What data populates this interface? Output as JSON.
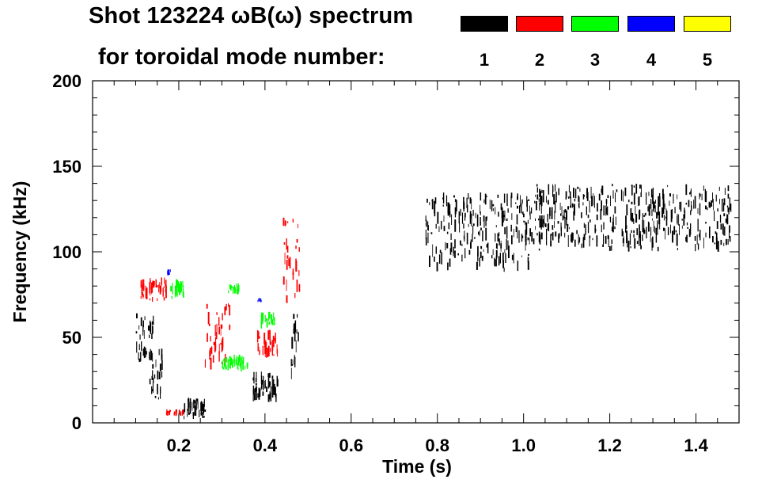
{
  "title_line1": "Shot 123224 ωB(ω) spectrum",
  "title_line2": "for toroidal mode number:",
  "legend": [
    {
      "label": "1",
      "color": "#000000"
    },
    {
      "label": "2",
      "color": "#ff0000"
    },
    {
      "label": "3",
      "color": "#00ff00"
    },
    {
      "label": "4",
      "color": "#0000ff"
    },
    {
      "label": "5",
      "color": "#ffff00"
    }
  ],
  "chart_data": {
    "type": "heatmap",
    "title": "Shot 123224 ωB(ω) spectrum",
    "xlabel": "Time (s)",
    "ylabel": "Frequency (kHz)",
    "xlim": [
      0.0,
      1.5
    ],
    "ylim": [
      0,
      200
    ],
    "xticks": [
      0.2,
      0.4,
      0.6,
      0.8,
      1.0,
      1.2,
      1.4
    ],
    "yticks": [
      0,
      50,
      100,
      150,
      200
    ],
    "grid": false,
    "legend_placement": "top",
    "series": [
      {
        "name": "1",
        "color": "#000000",
        "regions": [
          {
            "t": [
              0.1,
              0.14
            ],
            "f": [
              35,
              65
            ]
          },
          {
            "t": [
              0.13,
              0.16
            ],
            "f": [
              10,
              45
            ]
          },
          {
            "t": [
              0.21,
              0.26
            ],
            "f": [
              2,
              15
            ]
          },
          {
            "t": [
              0.37,
              0.43
            ],
            "f": [
              12,
              30
            ]
          },
          {
            "t": [
              0.46,
              0.48
            ],
            "f": [
              25,
              65
            ]
          },
          {
            "t": [
              0.77,
              1.02
            ],
            "f": [
              88,
              135
            ]
          },
          {
            "t": [
              1.02,
              1.48
            ],
            "f": [
              100,
              140
            ]
          }
        ]
      },
      {
        "name": "2",
        "color": "#ff0000",
        "regions": [
          {
            "t": [
              0.11,
              0.17
            ],
            "f": [
              70,
              85
            ]
          },
          {
            "t": [
              0.26,
              0.32
            ],
            "f": [
              30,
              70
            ]
          },
          {
            "t": [
              0.38,
              0.43
            ],
            "f": [
              38,
              55
            ]
          },
          {
            "t": [
              0.44,
              0.48
            ],
            "f": [
              70,
              120
            ]
          },
          {
            "t": [
              0.17,
              0.21
            ],
            "f": [
              4,
              8
            ]
          }
        ]
      },
      {
        "name": "3",
        "color": "#00ff00",
        "regions": [
          {
            "t": [
              0.18,
              0.21
            ],
            "f": [
              72,
              85
            ]
          },
          {
            "t": [
              0.31,
              0.34
            ],
            "f": [
              75,
              82
            ]
          },
          {
            "t": [
              0.39,
              0.42
            ],
            "f": [
              55,
              65
            ]
          },
          {
            "t": [
              0.3,
              0.36
            ],
            "f": [
              30,
              40
            ]
          }
        ]
      },
      {
        "name": "4",
        "color": "#0000ff",
        "regions": [
          {
            "t": [
              0.17,
              0.18
            ],
            "f": [
              86,
              90
            ]
          },
          {
            "t": [
              0.38,
              0.39
            ],
            "f": [
              70,
              73
            ]
          }
        ]
      },
      {
        "name": "5",
        "color": "#ffff00",
        "regions": []
      }
    ]
  }
}
